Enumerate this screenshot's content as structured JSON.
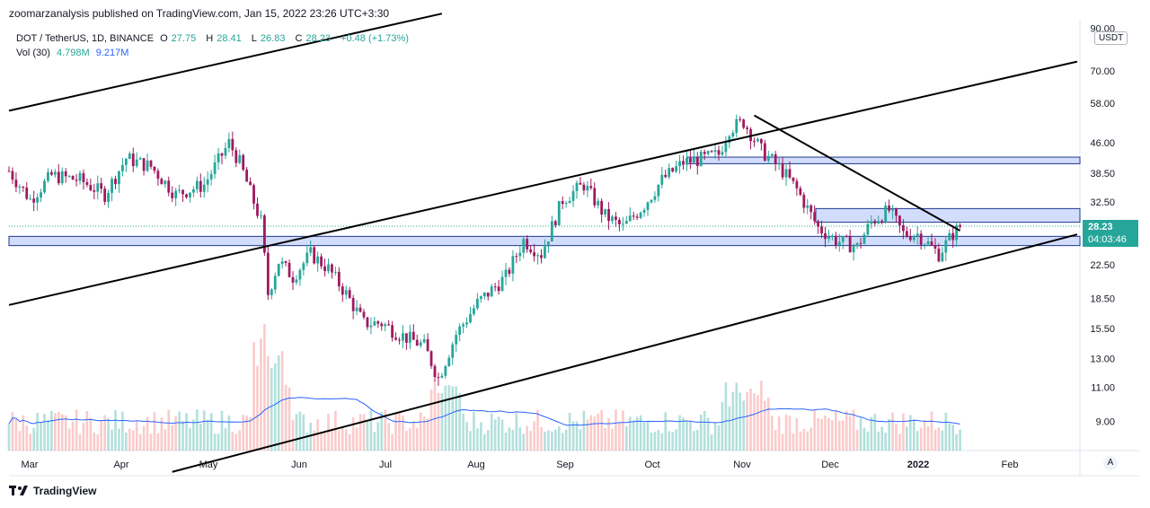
{
  "header": {
    "publisher_line": "zoomarzanalysis published on TradingView.com, Jan 15, 2022 23:26 UTC+3:30"
  },
  "legend": {
    "symbol": "DOT / TetherUS, 1D, BINANCE",
    "open_label": "O",
    "open": "27.75",
    "high_label": "H",
    "high": "28.41",
    "low_label": "L",
    "low": "26.83",
    "close_label": "C",
    "close": "28.23",
    "change": "+0.48 (+1.73%)",
    "vol_label": "Vol (30)",
    "vol_value": "4.798M",
    "vol_ma": "9.217M"
  },
  "price_tag": {
    "price": "28.23",
    "countdown": "04:03:46"
  },
  "currency": "USDT",
  "auto_button": "A",
  "footer": {
    "brand": "TradingView"
  },
  "colors": {
    "up": "#26a69a",
    "down": "#a0195f",
    "zone": "#7e9bf5",
    "line": "#000000",
    "vol_ma": "#2962ff"
  },
  "chart_data": {
    "type": "candlestick",
    "title": "DOT / TetherUS, 1D, BINANCE",
    "y_axis": {
      "scale": "log",
      "ticks": [
        90.0,
        70.0,
        58.0,
        46.0,
        38.5,
        32.5,
        28.23,
        22.5,
        18.5,
        15.5,
        13.0,
        11.0,
        9.0
      ],
      "tick_labels": [
        "90.00",
        "70.00",
        "58.00",
        "46.00",
        "38.50",
        "32.50",
        "22.50",
        "18.50",
        "15.50",
        "13.00",
        "11.00",
        "9.00"
      ]
    },
    "x_axis": {
      "month_labels": [
        "Mar",
        "Apr",
        "May",
        "Jun",
        "Jul",
        "Aug",
        "Sep",
        "Oct",
        "Nov",
        "Dec",
        "2022",
        "Feb"
      ]
    },
    "close_path": [
      {
        "d": 0,
        "p": 39
      },
      {
        "d": 6,
        "p": 33
      },
      {
        "d": 12,
        "p": 38
      },
      {
        "d": 20,
        "p": 37
      },
      {
        "d": 27,
        "p": 34
      },
      {
        "d": 33,
        "p": 42
      },
      {
        "d": 40,
        "p": 40
      },
      {
        "d": 47,
        "p": 34
      },
      {
        "d": 55,
        "p": 36
      },
      {
        "d": 62,
        "p": 46
      },
      {
        "d": 65,
        "p": 41
      },
      {
        "d": 71,
        "p": 29
      },
      {
        "d": 73,
        "p": 19
      },
      {
        "d": 76,
        "p": 23
      },
      {
        "d": 80,
        "p": 21
      },
      {
        "d": 85,
        "p": 24
      },
      {
        "d": 90,
        "p": 22
      },
      {
        "d": 95,
        "p": 19
      },
      {
        "d": 100,
        "p": 16
      },
      {
        "d": 105,
        "p": 16
      },
      {
        "d": 110,
        "p": 15
      },
      {
        "d": 117,
        "p": 14
      },
      {
        "d": 121,
        "p": 11.6
      },
      {
        "d": 126,
        "p": 15
      },
      {
        "d": 132,
        "p": 18
      },
      {
        "d": 140,
        "p": 21
      },
      {
        "d": 145,
        "p": 26
      },
      {
        "d": 150,
        "p": 24
      },
      {
        "d": 156,
        "p": 33
      },
      {
        "d": 162,
        "p": 36
      },
      {
        "d": 168,
        "p": 30
      },
      {
        "d": 173,
        "p": 28
      },
      {
        "d": 179,
        "p": 32
      },
      {
        "d": 184,
        "p": 37
      },
      {
        "d": 190,
        "p": 41
      },
      {
        "d": 196,
        "p": 42
      },
      {
        "d": 200,
        "p": 43
      },
      {
        "d": 203,
        "p": 50
      },
      {
        "d": 207,
        "p": 52
      },
      {
        "d": 212,
        "p": 44
      },
      {
        "d": 218,
        "p": 39
      },
      {
        "d": 222,
        "p": 35
      },
      {
        "d": 228,
        "p": 28
      },
      {
        "d": 233,
        "p": 26
      },
      {
        "d": 239,
        "p": 25
      },
      {
        "d": 243,
        "p": 29
      },
      {
        "d": 248,
        "p": 31
      },
      {
        "d": 252,
        "p": 27
      },
      {
        "d": 256,
        "p": 27
      },
      {
        "d": 262,
        "p": 24
      },
      {
        "d": 266,
        "p": 27
      },
      {
        "d": 268,
        "p": 28.2
      }
    ],
    "zones": [
      {
        "name": "support-zone",
        "low": 25.2,
        "high": 26.6
      },
      {
        "name": "resistance-zone-upper",
        "low": 40.7,
        "high": 42.3
      },
      {
        "name": "resistance-zone-mid",
        "low": 28.9,
        "high": 31.3
      }
    ],
    "trendlines": [
      {
        "name": "channel-top-left",
        "from": {
          "d": 0,
          "p": 55.5
        },
        "to": {
          "d": 122,
          "p": 98
        }
      },
      {
        "name": "channel-mid",
        "from": {
          "d": 0,
          "p": 17.8
        },
        "to": {
          "d": 301,
          "p": 74
        }
      },
      {
        "name": "channel-bottom",
        "from": {
          "d": 46,
          "p": 6.7
        },
        "to": {
          "d": 301,
          "p": 26.9
        }
      },
      {
        "name": "descending-resistance",
        "from": {
          "d": 210,
          "p": 54
        },
        "to": {
          "d": 268,
          "p": 27.5
        }
      }
    ],
    "volume_ma_label": "Vol (30)",
    "last_price": 28.23
  }
}
